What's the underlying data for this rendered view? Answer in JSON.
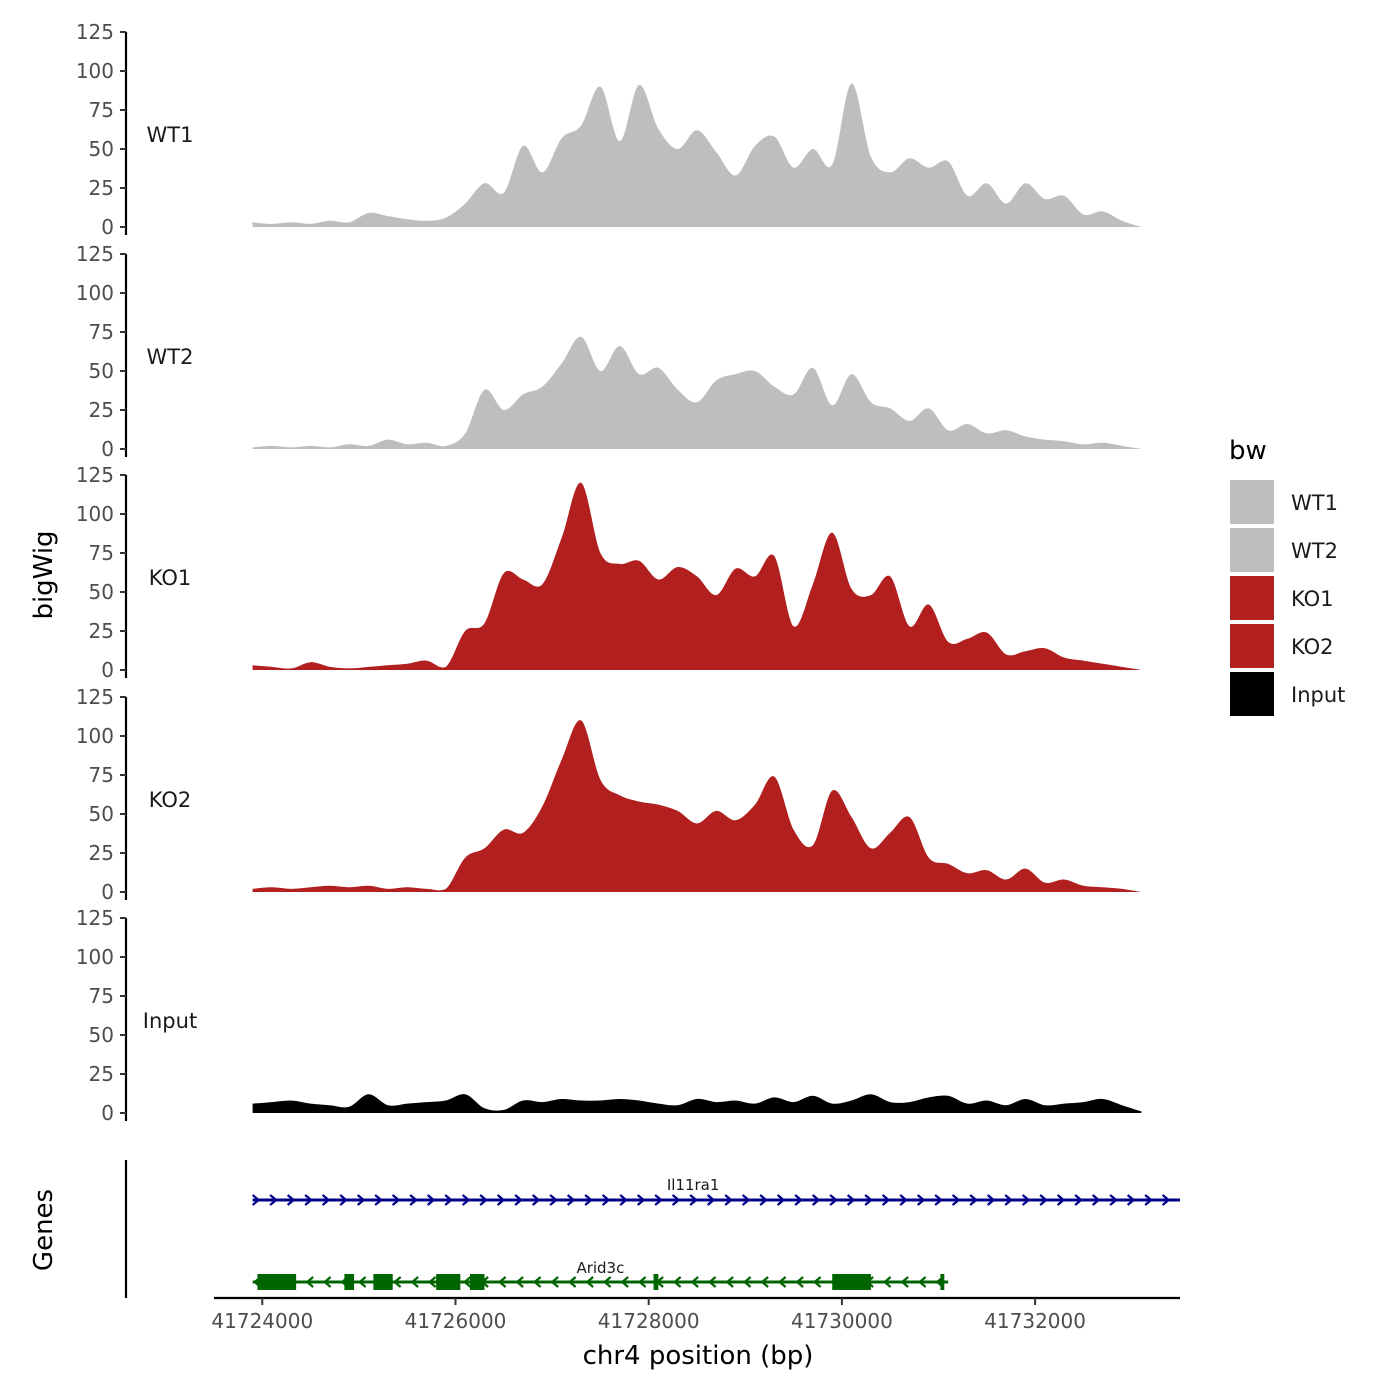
{
  "chart_data": {
    "type": "area",
    "layout": "stacked coverage tracks with gene annotation track",
    "ylabel": "bigWig",
    "xlabel": "chr4 position (bp)",
    "genes_label": "Genes",
    "xlim": [
      41723500,
      41733500
    ],
    "xticks": [
      41724000,
      41726000,
      41728000,
      41730000,
      41732000
    ],
    "xtick_labels": [
      "41724000",
      "41726000",
      "41728000",
      "41730000",
      "41732000"
    ],
    "ylim": [
      0,
      125
    ],
    "yticks": [
      0,
      25,
      50,
      75,
      100,
      125
    ],
    "ytick_labels": [
      "0",
      "25",
      "50",
      "75",
      "100",
      "125"
    ],
    "legend": {
      "title": "bw",
      "position": "right",
      "entries": [
        {
          "label": "WT1",
          "color": "#bebebe"
        },
        {
          "label": "WT2",
          "color": "#bebebe"
        },
        {
          "label": "KO1",
          "color": "#b21f1f"
        },
        {
          "label": "KO2",
          "color": "#b21f1f"
        },
        {
          "label": "Input",
          "color": "#000000"
        }
      ]
    },
    "x": [
      41723900,
      41724100,
      41724300,
      41724500,
      41724700,
      41724900,
      41725100,
      41725300,
      41725500,
      41725700,
      41725900,
      41726100,
      41726300,
      41726500,
      41726700,
      41726900,
      41727100,
      41727300,
      41727500,
      41727700,
      41727900,
      41728100,
      41728300,
      41728500,
      41728700,
      41728900,
      41729100,
      41729300,
      41729500,
      41729700,
      41729900,
      41730100,
      41730300,
      41730500,
      41730700,
      41730900,
      41731100,
      41731300,
      41731500,
      41731700,
      41731900,
      41732100,
      41732300,
      41732500,
      41732700,
      41732900,
      41733100
    ],
    "series": [
      {
        "name": "WT1",
        "color": "#bebebe",
        "values": [
          3,
          2,
          3,
          2,
          4,
          3,
          9,
          7,
          5,
          4,
          6,
          15,
          28,
          22,
          52,
          35,
          57,
          65,
          90,
          55,
          91,
          63,
          50,
          62,
          48,
          33,
          52,
          58,
          38,
          50,
          40,
          92,
          45,
          35,
          44,
          38,
          42,
          20,
          28,
          15,
          28,
          18,
          20,
          8,
          10,
          4,
          0
        ]
      },
      {
        "name": "WT2",
        "color": "#bebebe",
        "values": [
          1,
          2,
          1,
          2,
          1,
          3,
          2,
          6,
          3,
          4,
          2,
          10,
          38,
          25,
          35,
          40,
          55,
          72,
          50,
          66,
          48,
          52,
          38,
          30,
          44,
          48,
          50,
          40,
          35,
          52,
          28,
          48,
          30,
          26,
          18,
          26,
          12,
          16,
          10,
          12,
          8,
          6,
          5,
          3,
          4,
          2,
          0
        ]
      },
      {
        "name": "KO1",
        "color": "#b21f1f",
        "values": [
          3,
          2,
          1,
          5,
          2,
          1,
          2,
          3,
          4,
          6,
          2,
          25,
          30,
          62,
          58,
          55,
          85,
          120,
          75,
          68,
          70,
          58,
          66,
          60,
          48,
          65,
          60,
          73,
          28,
          55,
          88,
          52,
          48,
          60,
          28,
          42,
          18,
          20,
          24,
          10,
          12,
          14,
          8,
          6,
          4,
          2,
          0
        ]
      },
      {
        "name": "KO2",
        "color": "#b21f1f",
        "values": [
          2,
          3,
          2,
          3,
          4,
          3,
          4,
          2,
          3,
          2,
          2,
          22,
          28,
          40,
          38,
          55,
          85,
          110,
          72,
          62,
          58,
          56,
          52,
          44,
          52,
          46,
          56,
          74,
          40,
          30,
          65,
          48,
          28,
          38,
          48,
          22,
          18,
          12,
          14,
          8,
          15,
          6,
          8,
          4,
          3,
          2,
          0
        ]
      },
      {
        "name": "Input",
        "color": "#000000",
        "values": [
          6,
          7,
          8,
          6,
          5,
          4,
          12,
          5,
          6,
          7,
          8,
          12,
          3,
          2,
          8,
          7,
          9,
          8,
          8,
          9,
          8,
          6,
          5,
          9,
          7,
          8,
          6,
          10,
          7,
          11,
          6,
          8,
          12,
          7,
          7,
          10,
          11,
          6,
          8,
          5,
          9,
          5,
          6,
          7,
          9,
          5,
          1
        ]
      }
    ],
    "genes": [
      {
        "name": "Il11ra1",
        "strand": "+",
        "start": 41723900,
        "end": 41733500,
        "color": "#00008b",
        "exons": []
      },
      {
        "name": "Arid3c",
        "strand": "-",
        "start": 41723900,
        "end": 41731100,
        "color": "#006400",
        "exons": [
          [
            41723950,
            41724350
          ],
          [
            41724850,
            41724950
          ],
          [
            41725150,
            41725350
          ],
          [
            41725800,
            41726050
          ],
          [
            41726150,
            41726300
          ],
          [
            41728050,
            41728100
          ],
          [
            41729900,
            41730300
          ],
          [
            41731020,
            41731060
          ]
        ]
      }
    ]
  }
}
